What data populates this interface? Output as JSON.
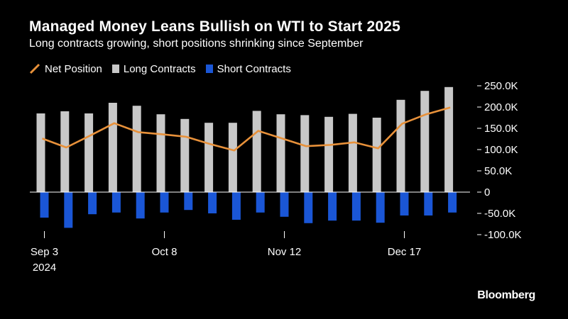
{
  "title": "Managed Money Leans Bullish on WTI to Start 2025",
  "subtitle": "Long contracts growing, short positions shrinking since September",
  "brand": "Bloomberg",
  "colors": {
    "background": "#000000",
    "net_line": "#e8913a",
    "long_bar": "#c8c8c8",
    "short_bar": "#1a56d6",
    "axis": "#ffffff"
  },
  "legend": {
    "net": "Net Position",
    "long": "Long Contracts",
    "short": "Short Contracts"
  },
  "chart_data": {
    "type": "bar",
    "x_ticks": [
      {
        "index": 0,
        "label": "Sep 3",
        "sublabel": "2024"
      },
      {
        "index": 5,
        "label": "Oct 8",
        "sublabel": ""
      },
      {
        "index": 10,
        "label": "Nov 12",
        "sublabel": ""
      },
      {
        "index": 15,
        "label": "Dec 17",
        "sublabel": ""
      }
    ],
    "y_ticks": [
      {
        "value": 250000,
        "label": "250.0K"
      },
      {
        "value": 200000,
        "label": "200.0K"
      },
      {
        "value": 150000,
        "label": "150.0K"
      },
      {
        "value": 100000,
        "label": "100.0K"
      },
      {
        "value": 50000,
        "label": "50.0K"
      },
      {
        "value": 0,
        "label": "0"
      },
      {
        "value": -50000,
        "label": "-50.0K"
      },
      {
        "value": -100000,
        "label": "-100.0K"
      }
    ],
    "ylim": [
      -100000,
      250000
    ],
    "series": [
      {
        "name": "Long Contracts",
        "kind": "bar",
        "values": [
          185000,
          190000,
          185000,
          210000,
          203000,
          183000,
          172000,
          163000,
          163000,
          191000,
          183000,
          181000,
          177000,
          184000,
          175000,
          217000,
          238000,
          247000
        ]
      },
      {
        "name": "Short Contracts",
        "kind": "bar",
        "values": [
          -60000,
          -84000,
          -52000,
          -48000,
          -62000,
          -48000,
          -42000,
          -50000,
          -65000,
          -48000,
          -58000,
          -73000,
          -67000,
          -67000,
          -72000,
          -55000,
          -55000,
          -48000
        ]
      },
      {
        "name": "Net Position",
        "kind": "line",
        "values": [
          126000,
          105000,
          133000,
          162000,
          141000,
          136000,
          130000,
          113000,
          98000,
          144000,
          126000,
          108000,
          111000,
          117000,
          103000,
          161000,
          183000,
          199000
        ]
      }
    ]
  }
}
